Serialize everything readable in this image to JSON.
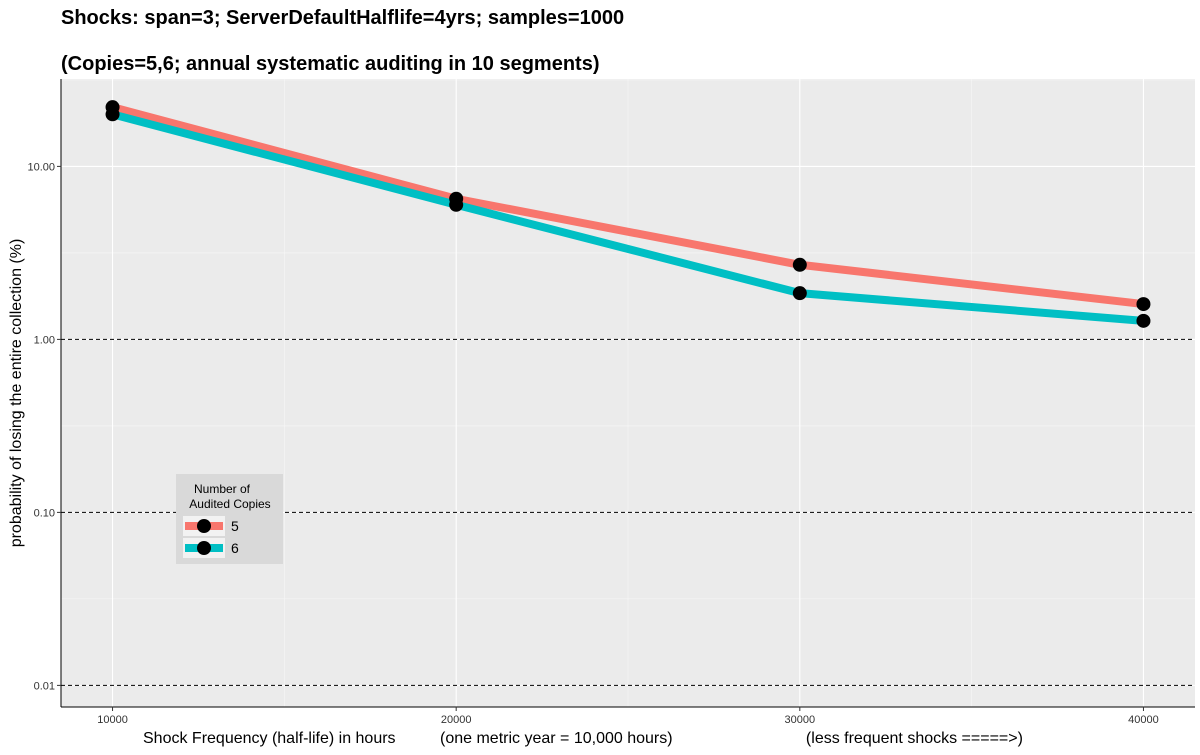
{
  "chart_data": {
    "type": "line",
    "title": "Shocks: span=3; ServerDefaultHalflife=4yrs; samples=1000",
    "subtitle": "(Copies=5,6; annual systematic auditing in 10 segments)",
    "xlabel": "Shock Frequency (half-life) in hours          (one metric year = 10,000 hours)                              (less frequent shocks =====>)",
    "ylabel": "probability of losing the entire collection (%)",
    "x": [
      10000,
      20000,
      30000,
      40000
    ],
    "x_tick_labels": [
      "10000",
      "20000",
      "30000",
      "40000"
    ],
    "xlim": [
      8500,
      41500
    ],
    "y_scale": "log10",
    "y_ticks": [
      0.01,
      0.1,
      1.0,
      10.0
    ],
    "y_tick_labels": [
      "0.01",
      "0.10",
      "1.00",
      "10.00"
    ],
    "ylim": [
      0.0075,
      32
    ],
    "reference_lines": [
      0.01,
      0.1,
      1.0
    ],
    "reference_line_style": "dashed",
    "grid": true,
    "legend": {
      "title_line1": "Number of",
      "title_line2": "Audited Copies",
      "placement": "inside-left"
    },
    "series": [
      {
        "name": "5",
        "color": "#F8766D",
        "values": [
          22,
          6.5,
          2.7,
          1.6
        ]
      },
      {
        "name": "6",
        "color": "#00BFC4",
        "values": [
          20,
          6.0,
          1.85,
          1.28
        ]
      }
    ],
    "point_color": "#000000"
  }
}
